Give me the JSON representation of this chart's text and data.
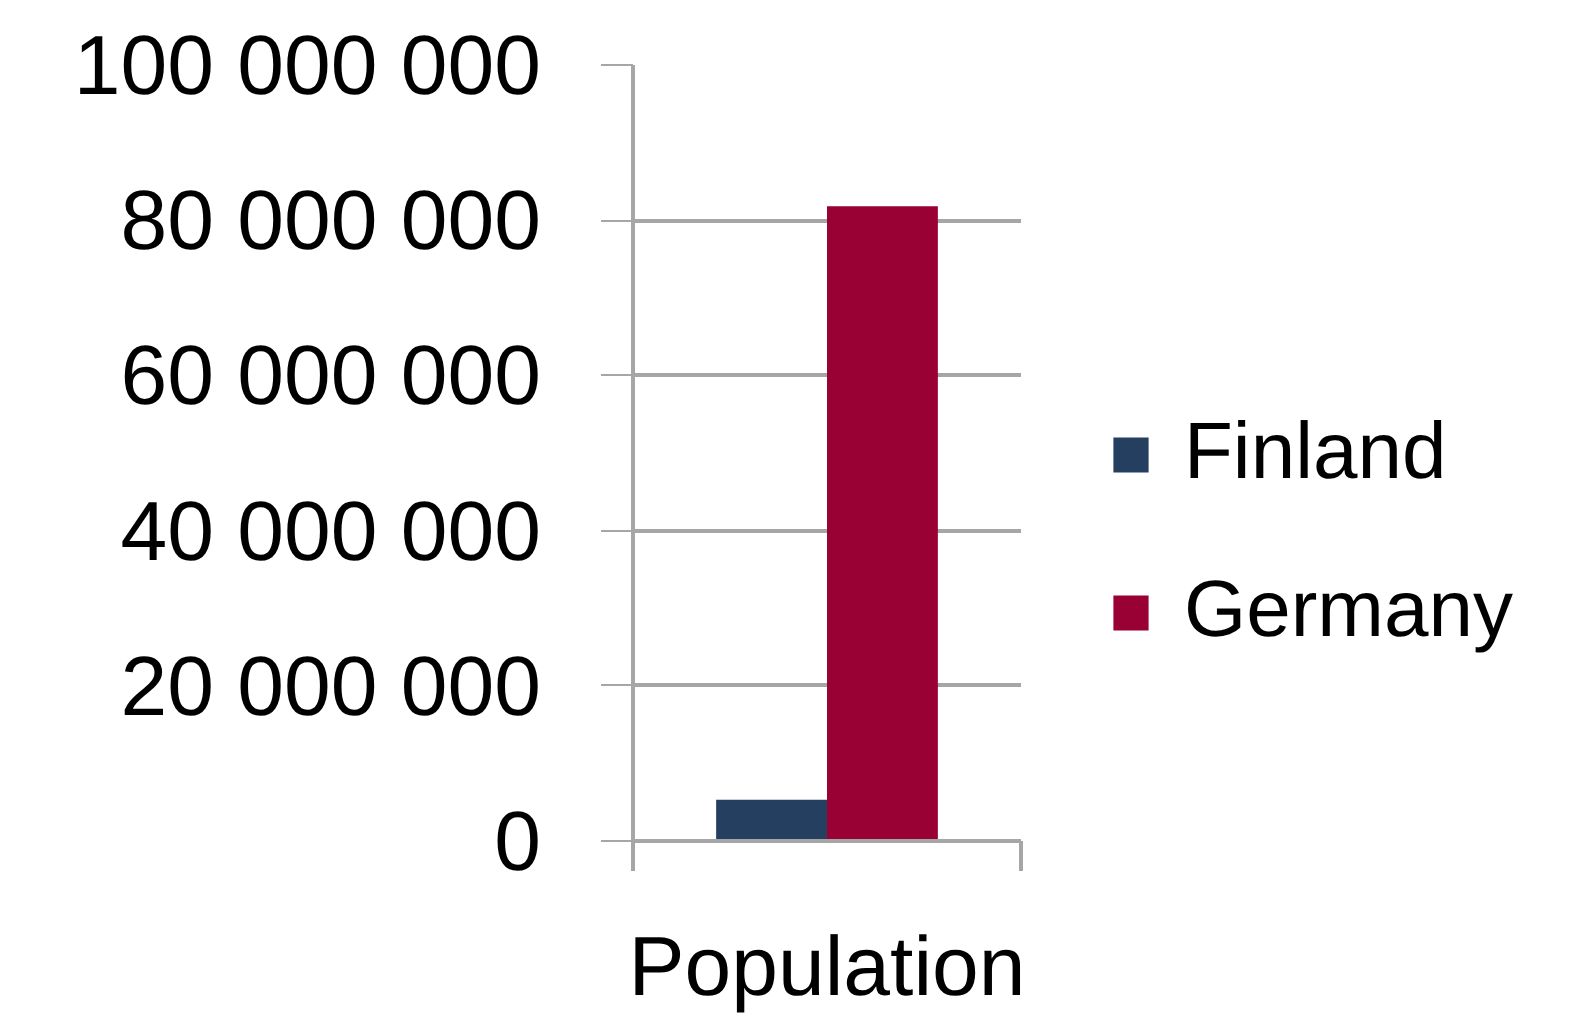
{
  "chart_data": {
    "type": "bar",
    "categories": [
      "Population"
    ],
    "series": [
      {
        "name": "Finland",
        "color": "#243f60",
        "values": [
          5300000
        ]
      },
      {
        "name": "Germany",
        "color": "#990033",
        "values": [
          81800000
        ]
      }
    ],
    "ylim": [
      0,
      100000000
    ],
    "yticks": [
      0,
      {
        "value": 20000000,
        "label": "20 000 000"
      },
      {
        "value": 40000000,
        "label": "40 000 000"
      },
      {
        "value": 60000000,
        "label": "60 000 000"
      },
      {
        "value": 80000000,
        "label": "80 000 000"
      },
      {
        "value": 100000000,
        "label": "100 000 000"
      }
    ],
    "grid": "y",
    "legend": "right"
  }
}
